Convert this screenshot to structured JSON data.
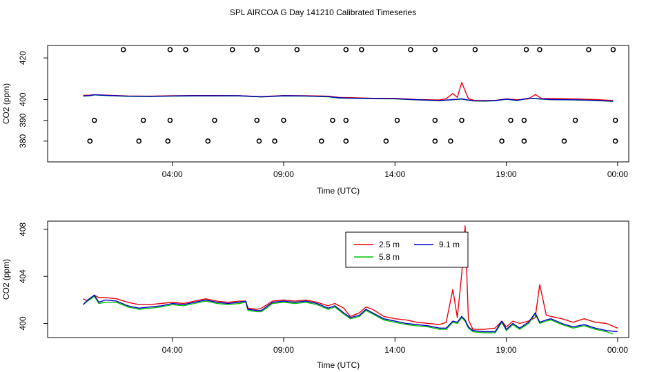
{
  "title": "SPL AIRCOA G  Day 141210  Calibrated Timeseries",
  "colors": {
    "red": "#e8000b",
    "green": "#00c000",
    "blue": "#0000c8",
    "black": "#000000"
  },
  "chart_data": [
    {
      "type": "line",
      "title": "",
      "xlabel": "Time (UTC)",
      "ylabel": "CO2 (ppm)",
      "xlim": [
        -1.6,
        24.5
      ],
      "ylim": [
        370,
        426
      ],
      "x_tick_values": [
        4,
        9,
        14,
        19,
        24
      ],
      "x_tick_labels": [
        "04:00",
        "09:00",
        "14:00",
        "19:00",
        "00:00"
      ],
      "y_tick_values": [
        380,
        390,
        400,
        420
      ],
      "y_tick_labels": [
        "380",
        "390",
        "400",
        "420"
      ],
      "markers": [
        {
          "y": 424,
          "x": [
            1.8,
            3.9,
            4.6,
            6.7,
            7.8,
            9.6,
            11.8,
            12.5,
            14.7,
            15.8,
            17.6,
            19.9,
            20.5,
            22.7,
            23.8
          ]
        },
        {
          "y": 390,
          "x": [
            0.5,
            2.7,
            3.9,
            5.9,
            7.8,
            9.0,
            11.2,
            11.8,
            14.1,
            15.8,
            17.0,
            19.2,
            19.8,
            22.1,
            23.9
          ]
        },
        {
          "y": 380,
          "x": [
            0.3,
            2.5,
            3.8,
            5.6,
            7.9,
            8.6,
            10.7,
            11.8,
            13.6,
            15.8,
            16.5,
            18.8,
            19.8,
            21.6,
            23.9
          ]
        }
      ],
      "series": [
        {
          "name": "2.5 m",
          "color": "#e8000b",
          "x": [
            0,
            0.3,
            0.5,
            1,
            2,
            3,
            4,
            5,
            6,
            7,
            8,
            9,
            10,
            11,
            11.5,
            12,
            13,
            14,
            15,
            16,
            16.3,
            16.6,
            16.8,
            17,
            17.3,
            17.6,
            18,
            18.5,
            19,
            19.5,
            20,
            20.3,
            20.6,
            21,
            22,
            23,
            23.8
          ],
          "y": [
            402.0,
            402.1,
            402.3,
            402.1,
            401.7,
            401.6,
            401.8,
            401.9,
            401.9,
            401.8,
            401.4,
            401.9,
            401.8,
            401.6,
            401.0,
            400.9,
            400.6,
            400.6,
            400.0,
            399.8,
            400.4,
            402.9,
            401.0,
            408.2,
            400.4,
            399.5,
            399.5,
            399.6,
            400.3,
            399.9,
            400.3,
            402.4,
            400.4,
            400.5,
            400.3,
            400.0,
            399.5
          ]
        },
        {
          "name": "5.8 m",
          "color": "#00c000",
          "x": [
            0,
            0.3,
            0.5,
            1,
            2,
            3,
            4,
            5,
            6,
            7,
            8,
            9,
            10,
            11,
            11.5,
            12,
            13,
            14,
            15,
            16,
            17,
            17.5,
            18,
            18.5,
            19,
            19.5,
            20,
            21,
            22,
            23,
            23.8
          ],
          "y": [
            401.6,
            401.8,
            402.2,
            401.9,
            401.5,
            401.4,
            401.6,
            401.7,
            401.7,
            401.7,
            401.2,
            401.7,
            401.6,
            401.3,
            400.7,
            400.6,
            400.4,
            400.3,
            399.8,
            399.4,
            400.2,
            399.3,
            399.2,
            399.4,
            400.1,
            399.5,
            400.6,
            399.9,
            399.8,
            399.5,
            399.1
          ]
        },
        {
          "name": "9.1 m",
          "color": "#0000c8",
          "x": [
            0,
            0.3,
            0.5,
            1,
            2,
            3,
            4,
            5,
            6,
            7,
            8,
            9,
            10,
            11,
            11.5,
            12,
            13,
            14,
            15,
            16,
            17,
            17.5,
            18,
            18.5,
            19,
            19.5,
            20,
            21,
            22,
            23,
            23.8
          ],
          "y": [
            401.7,
            401.9,
            402.3,
            402.0,
            401.6,
            401.5,
            401.7,
            401.8,
            401.8,
            401.8,
            401.3,
            401.8,
            401.7,
            401.4,
            400.8,
            400.7,
            400.5,
            400.4,
            399.9,
            399.5,
            400.3,
            399.4,
            399.3,
            399.5,
            400.2,
            399.6,
            400.7,
            400.0,
            399.9,
            399.6,
            399.2
          ]
        }
      ]
    },
    {
      "type": "line",
      "title": "",
      "xlabel": "Time (UTC)",
      "ylabel": "CO2 (ppm)",
      "xlim": [
        -1.6,
        24.5
      ],
      "ylim": [
        398.8,
        408.7
      ],
      "x_tick_values": [
        4,
        9,
        14,
        19,
        24
      ],
      "x_tick_labels": [
        "04:00",
        "09:00",
        "14:00",
        "19:00",
        "00:00"
      ],
      "y_tick_values": [
        400,
        404,
        408
      ],
      "y_tick_labels": [
        "400",
        "404",
        "408"
      ],
      "legend": {
        "placement": "top-center",
        "entries": [
          "2.5 m",
          "9.1 m",
          "5.8 m"
        ]
      },
      "series": [
        {
          "name": "2.5 m",
          "color": "#e8000b",
          "x": [
            0,
            0.2,
            0.5,
            0.7,
            1,
            1.5,
            2,
            2.5,
            3,
            3.5,
            4,
            4.5,
            5,
            5.5,
            6,
            6.5,
            7,
            7.3,
            7.4,
            7.8,
            8,
            8.5,
            9,
            9.5,
            10,
            10.5,
            11,
            11.3,
            11.7,
            12,
            12.4,
            12.7,
            13,
            13.5,
            14,
            14.5,
            15,
            15.5,
            16,
            16.3,
            16.6,
            16.8,
            17.0,
            17.15,
            17.3,
            17.5,
            18,
            18.5,
            18.8,
            19,
            19.3,
            19.6,
            20,
            20.3,
            20.5,
            20.8,
            21,
            21.5,
            22,
            22.5,
            23,
            23.5,
            24
          ],
          "y": [
            402.1,
            401.9,
            402.4,
            402.2,
            402.2,
            402.1,
            401.8,
            401.6,
            401.6,
            401.7,
            401.8,
            401.7,
            401.9,
            402.1,
            401.9,
            401.8,
            401.9,
            401.9,
            401.3,
            401.2,
            401.3,
            401.9,
            402.0,
            401.9,
            402.0,
            401.8,
            401.5,
            401.7,
            401.3,
            400.6,
            400.9,
            401.4,
            401.2,
            400.6,
            400.4,
            400.3,
            400.1,
            400.0,
            399.9,
            400.1,
            402.9,
            400.5,
            404.2,
            408.3,
            400.3,
            399.5,
            399.5,
            399.6,
            400.2,
            399.7,
            400.2,
            400.0,
            400.2,
            400.5,
            403.3,
            400.7,
            400.6,
            400.4,
            400.1,
            400.4,
            400.1,
            400.0,
            399.6
          ]
        },
        {
          "name": "5.8 m",
          "color": "#00c000",
          "x": [
            0,
            0.2,
            0.5,
            0.7,
            1,
            1.5,
            2,
            2.5,
            3,
            3.5,
            4,
            4.5,
            5,
            5.5,
            6,
            6.5,
            7,
            7.3,
            7.4,
            7.8,
            8,
            8.5,
            9,
            9.5,
            10,
            10.5,
            11,
            11.3,
            11.7,
            12,
            12.4,
            12.7,
            13,
            13.5,
            14,
            14.5,
            15,
            15.5,
            16,
            16.3,
            16.6,
            16.8,
            17.0,
            17.15,
            17.3,
            17.5,
            18,
            18.5,
            18.8,
            19,
            19.3,
            19.6,
            20,
            20.3,
            20.5,
            20.8,
            21,
            21.5,
            22,
            22.5,
            23,
            23.5,
            23.8
          ],
          "y": [
            401.6,
            401.9,
            402.3,
            401.7,
            401.8,
            401.8,
            401.4,
            401.2,
            401.3,
            401.4,
            401.6,
            401.5,
            401.7,
            401.9,
            401.7,
            401.6,
            401.7,
            401.8,
            401.1,
            401.0,
            401.0,
            401.7,
            401.8,
            401.7,
            401.8,
            401.6,
            401.2,
            401.4,
            400.8,
            400.4,
            400.6,
            401.1,
            400.8,
            400.3,
            400.1,
            399.9,
            399.8,
            399.7,
            399.5,
            399.5,
            400.1,
            400.0,
            400.5,
            400.2,
            399.6,
            399.3,
            399.2,
            399.2,
            400.1,
            399.4,
            399.9,
            399.5,
            400.0,
            400.8,
            400.0,
            400.2,
            400.3,
            399.9,
            399.6,
            399.8,
            399.5,
            399.3,
            399.1
          ]
        },
        {
          "name": "9.1 m",
          "color": "#0000c8",
          "x": [
            0,
            0.2,
            0.5,
            0.7,
            1,
            1.5,
            2,
            2.5,
            3,
            3.5,
            4,
            4.5,
            5,
            5.5,
            6,
            6.5,
            7,
            7.3,
            7.4,
            7.8,
            8,
            8.5,
            9,
            9.5,
            10,
            10.5,
            11,
            11.3,
            11.7,
            12,
            12.4,
            12.7,
            13,
            13.5,
            14,
            14.5,
            15,
            15.5,
            16,
            16.3,
            16.6,
            16.8,
            17.0,
            17.15,
            17.3,
            17.5,
            18,
            18.5,
            18.8,
            19,
            19.3,
            19.6,
            20,
            20.3,
            20.5,
            20.8,
            21,
            21.5,
            22,
            22.5,
            23,
            23.5,
            24
          ],
          "y": [
            401.6,
            402.0,
            402.4,
            401.8,
            402.0,
            401.9,
            401.5,
            401.3,
            401.4,
            401.5,
            401.7,
            401.6,
            401.8,
            402.0,
            401.8,
            401.7,
            401.8,
            401.9,
            401.2,
            401.1,
            401.1,
            401.8,
            401.9,
            401.8,
            401.9,
            401.7,
            401.3,
            401.5,
            400.9,
            400.5,
            400.7,
            401.2,
            400.9,
            400.4,
            400.2,
            400.0,
            399.9,
            399.8,
            399.6,
            399.6,
            400.2,
            400.1,
            400.6,
            400.3,
            399.7,
            399.4,
            399.3,
            399.3,
            400.2,
            399.5,
            400.0,
            399.6,
            400.1,
            400.9,
            400.1,
            400.3,
            400.4,
            400.0,
            399.7,
            399.9,
            399.6,
            399.4,
            399.3
          ]
        }
      ]
    }
  ]
}
